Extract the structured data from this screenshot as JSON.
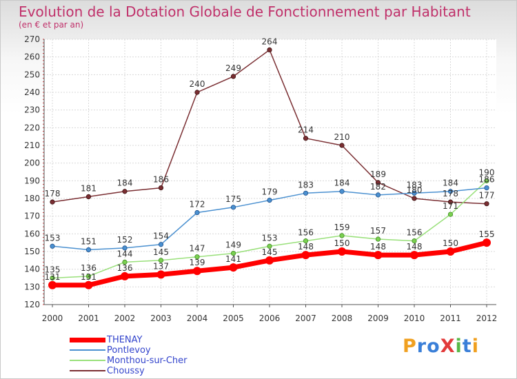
{
  "header": {
    "title": "Evolution de la Dotation Globale de Fonctionnement par Habitant",
    "subtitle": "(en € et par an)"
  },
  "logo": {
    "text": "ProXiti",
    "colors": [
      "#f0a020",
      "#3a7fd8",
      "#3a7fd8",
      "#e23a3a",
      "#57b847",
      "#3a7fd8",
      "#f0a020"
    ]
  },
  "chart_data": {
    "type": "line",
    "title": "Evolution de la Dotation Globale de Fonctionnement par Habitant",
    "subtitle": "(en € et par an)",
    "xlabel": "",
    "ylabel": "",
    "ylim": [
      120,
      270
    ],
    "yticks": [
      120,
      130,
      140,
      150,
      160,
      170,
      180,
      190,
      200,
      210,
      220,
      230,
      240,
      250,
      260,
      270
    ],
    "grid": true,
    "legend_position": "bottom-left",
    "x": [
      "2000",
      "2001",
      "2002",
      "2003",
      "2004",
      "2005",
      "2006",
      "2007",
      "2008",
      "2009",
      "2010",
      "2011",
      "2012"
    ],
    "series": [
      {
        "name": "THENAY",
        "color": "#ff0000",
        "values": [
          131,
          131,
          136,
          137,
          139,
          141,
          145,
          148,
          150,
          148,
          148,
          150,
          155
        ]
      },
      {
        "name": "Pontlevoy",
        "color": "#4a90d0",
        "values": [
          153,
          151,
          152,
          154,
          172,
          175,
          179,
          183,
          184,
          182,
          183,
          184,
          186
        ]
      },
      {
        "name": "Monthou-sur-Cher",
        "color": "#99e07a",
        "values": [
          135,
          136,
          144,
          145,
          147,
          149,
          153,
          156,
          159,
          157,
          156,
          171,
          190
        ]
      },
      {
        "name": "Choussy",
        "color": "#7a2e32",
        "values": [
          178,
          181,
          184,
          186,
          240,
          249,
          264,
          214,
          210,
          189,
          180,
          178,
          177
        ]
      }
    ]
  }
}
